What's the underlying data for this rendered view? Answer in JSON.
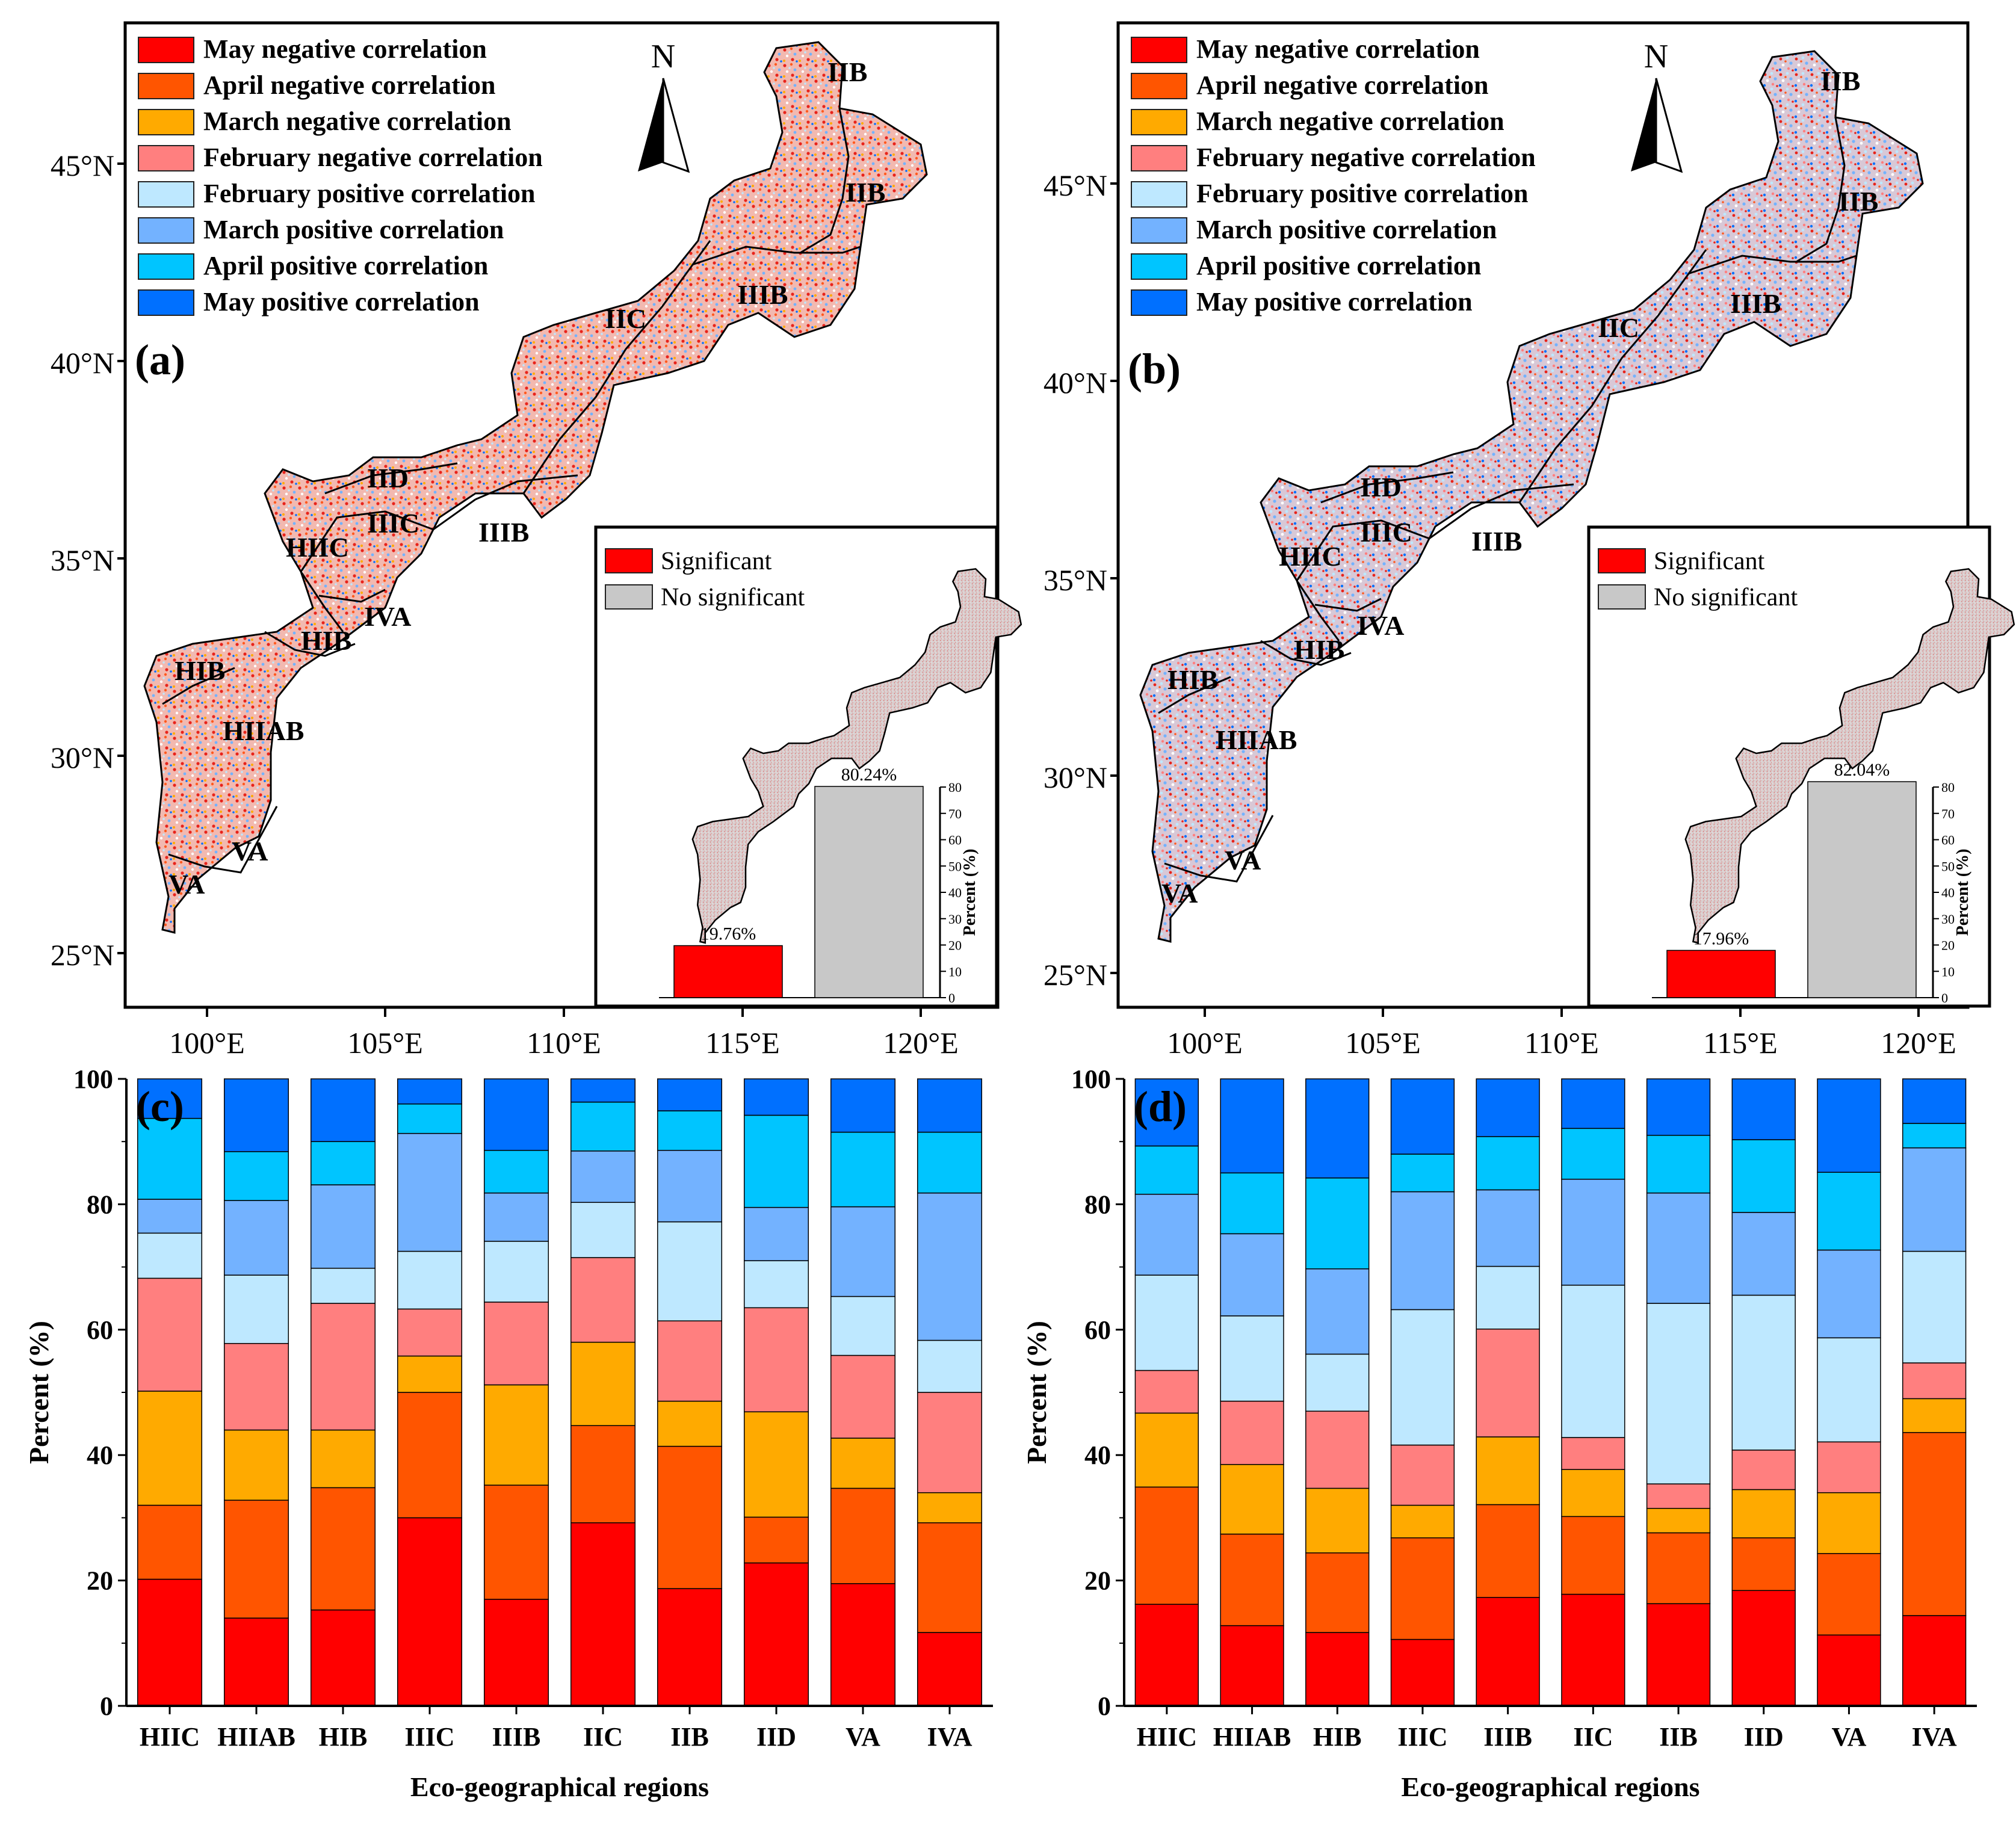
{
  "legend_items": [
    {
      "label": "May negative correlation",
      "color": "#ff0000"
    },
    {
      "label": "April negative correlation",
      "color": "#ff5500"
    },
    {
      "label": "March negative correlation",
      "color": "#ffaa00"
    },
    {
      "label": "February negative correlation",
      "color": "#ff7f7f"
    },
    {
      "label": "February positive correlation",
      "color": "#bee8ff"
    },
    {
      "label": "March positive correlation",
      "color": "#73b2ff"
    },
    {
      "label": "April positive correlation",
      "color": "#00c5ff"
    },
    {
      "label": "May positive correlation",
      "color": "#0070ff"
    }
  ],
  "north_label": "N",
  "lat_labels": [
    "45°N",
    "40°N",
    "35°N",
    "30°N",
    "25°N"
  ],
  "lon_labels": [
    "100°E",
    "105°E",
    "110°E",
    "115°E",
    "120°E"
  ],
  "inset": {
    "sig_label": "Significant",
    "nosig_label": "No significant",
    "sig_color": "#ff0000",
    "nosig_color": "#c8c8c8",
    "ylabel": "Percent (%)",
    "yticks": [
      "0",
      "10",
      "20",
      "30",
      "40",
      "50",
      "60",
      "70",
      "80"
    ]
  },
  "maps": [
    {
      "panel_label": "(a)",
      "region_labels": [
        "IIB",
        "IIB",
        "IIC",
        "IIIB",
        "IID",
        "IIIC",
        "IIIB",
        "HIIC",
        "IVA",
        "HIB",
        "HIB",
        "HIIAB",
        "VA",
        "VA"
      ],
      "inset_values": [
        19.76,
        80.24
      ],
      "inset_value_labels": [
        "19.76%",
        "80.24%"
      ]
    },
    {
      "panel_label": "(b)",
      "region_labels": [
        "IIB",
        "IIB",
        "IIC",
        "IIIB",
        "IID",
        "IIIC",
        "IIIB",
        "HIIC",
        "IVA",
        "HIB",
        "HIB",
        "HIIAB",
        "VA",
        "VA"
      ],
      "inset_values": [
        17.96,
        82.04
      ],
      "inset_value_labels": [
        "17.96%",
        "82.04%"
      ]
    }
  ],
  "chart_data": [
    {
      "type": "bar",
      "stacked": true,
      "panel_label": "(c)",
      "title": "",
      "xlabel": "Eco-geographical regions",
      "ylabel": "Percent (%)",
      "ylim": [
        0,
        100
      ],
      "yticks": [
        0,
        20,
        40,
        60,
        80,
        100
      ],
      "categories": [
        "HIIC",
        "HIIAB",
        "HIB",
        "IIIC",
        "IIIB",
        "IIC",
        "IIB",
        "IID",
        "VA",
        "IVA"
      ],
      "series": [
        {
          "name": "May negative correlation",
          "values": [
            20.2,
            14.0,
            15.3,
            30.0,
            17.0,
            29.2,
            18.7,
            22.8,
            19.5,
            11.7
          ]
        },
        {
          "name": "April negative correlation",
          "values": [
            11.8,
            18.8,
            19.5,
            20.0,
            18.2,
            15.5,
            22.7,
            7.3,
            15.2,
            17.5
          ]
        },
        {
          "name": "March negative correlation",
          "values": [
            18.2,
            11.2,
            9.2,
            5.8,
            16.0,
            13.3,
            7.2,
            16.8,
            8.0,
            4.8
          ]
        },
        {
          "name": "February negative correlation",
          "values": [
            18.0,
            13.8,
            20.2,
            7.5,
            13.2,
            13.5,
            12.8,
            16.6,
            13.2,
            16.0
          ]
        },
        {
          "name": "February positive correlation",
          "values": [
            7.2,
            10.9,
            5.6,
            9.2,
            9.7,
            8.8,
            15.8,
            7.5,
            9.4,
            8.3
          ]
        },
        {
          "name": "March positive correlation",
          "values": [
            5.4,
            11.9,
            13.3,
            18.8,
            7.7,
            8.2,
            11.4,
            8.5,
            14.3,
            23.5
          ]
        },
        {
          "name": "April positive correlation",
          "values": [
            12.9,
            7.8,
            6.9,
            4.7,
            6.8,
            7.8,
            6.3,
            14.7,
            11.9,
            9.7
          ]
        },
        {
          "name": "May positive correlation",
          "values": [
            6.3,
            11.6,
            10.0,
            4.0,
            11.4,
            3.7,
            5.1,
            5.8,
            8.5,
            8.5
          ]
        }
      ]
    },
    {
      "type": "bar",
      "stacked": true,
      "panel_label": "(d)",
      "title": "",
      "xlabel": "Eco-geographical regions",
      "ylabel": "Percent (%)",
      "ylim": [
        0,
        100
      ],
      "yticks": [
        0,
        20,
        40,
        60,
        80,
        100
      ],
      "categories": [
        "HIIC",
        "HIIAB",
        "HIB",
        "IIIC",
        "IIIB",
        "IIC",
        "IIB",
        "IID",
        "VA",
        "IVA"
      ],
      "series": [
        {
          "name": "May negative correlation",
          "values": [
            16.2,
            12.8,
            11.7,
            10.6,
            17.3,
            17.8,
            16.3,
            18.4,
            11.3,
            14.4
          ]
        },
        {
          "name": "April negative correlation",
          "values": [
            18.7,
            14.6,
            12.7,
            16.2,
            14.8,
            12.4,
            11.3,
            8.4,
            13.0,
            29.2
          ]
        },
        {
          "name": "March negative correlation",
          "values": [
            11.8,
            11.1,
            10.3,
            5.2,
            10.8,
            7.5,
            3.9,
            7.7,
            9.7,
            5.4
          ]
        },
        {
          "name": "February negative correlation",
          "values": [
            6.8,
            10.1,
            12.3,
            9.6,
            17.2,
            5.1,
            3.9,
            6.3,
            8.1,
            5.7
          ]
        },
        {
          "name": "February positive correlation",
          "values": [
            15.2,
            13.6,
            9.1,
            21.6,
            10.0,
            24.3,
            28.8,
            24.7,
            16.6,
            17.8
          ]
        },
        {
          "name": "March positive correlation",
          "values": [
            12.9,
            13.1,
            13.6,
            18.8,
            12.2,
            16.9,
            17.6,
            13.2,
            14.0,
            16.5
          ]
        },
        {
          "name": "April positive correlation",
          "values": [
            7.7,
            9.7,
            14.5,
            6.0,
            8.5,
            8.1,
            9.2,
            11.6,
            12.4,
            3.9
          ]
        },
        {
          "name": "May positive correlation",
          "values": [
            10.7,
            15.0,
            15.8,
            12.0,
            9.2,
            7.9,
            9.0,
            9.7,
            14.9,
            7.1
          ]
        }
      ]
    }
  ]
}
